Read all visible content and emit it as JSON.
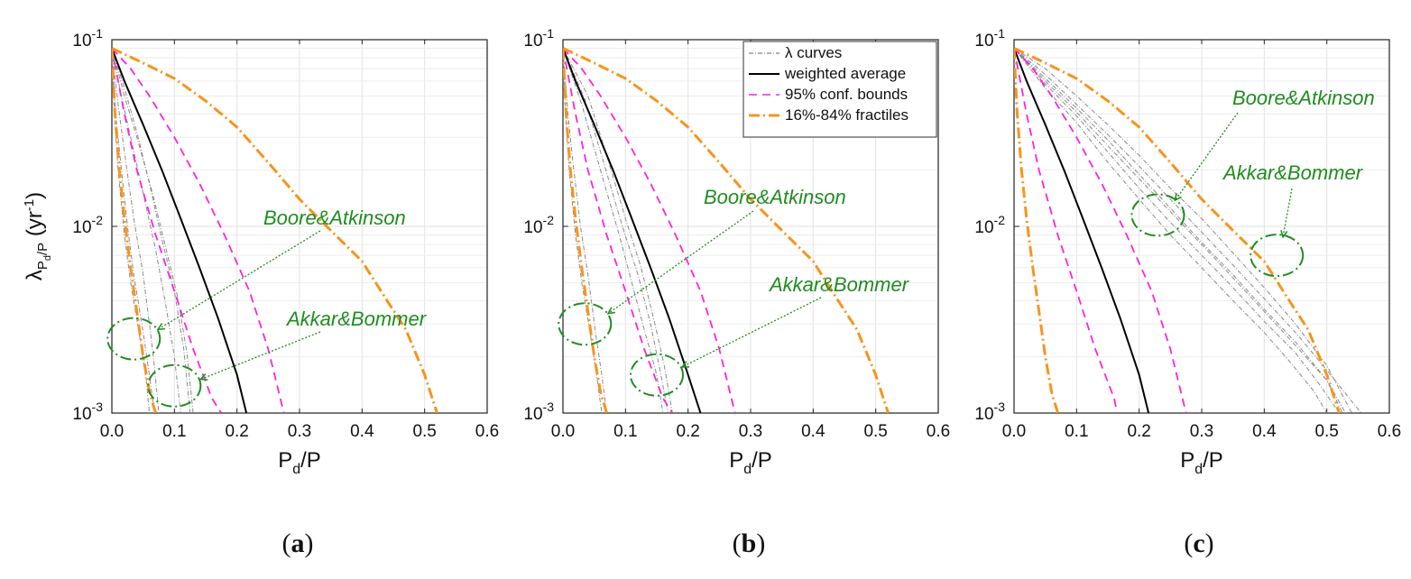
{
  "chart_data": [
    {
      "type": "line",
      "panel_label": "a",
      "xlabel": "P_d/P",
      "ylabel": "λ_{P_d/P} (yr^-1)",
      "xlim": [
        0,
        0.6
      ],
      "ylim": [
        0.001,
        0.1
      ],
      "yscale": "log",
      "xticks": [
        "0.0",
        "0.1",
        "0.2",
        "0.3",
        "0.4",
        "0.5",
        "0.6"
      ],
      "grid": true,
      "series": [
        {
          "name": "weighted average",
          "style": "solid",
          "color": "#000000",
          "x": [
            0,
            0.02,
            0.05,
            0.08,
            0.11,
            0.14,
            0.17,
            0.2,
            0.215
          ],
          "y": [
            0.09,
            0.06,
            0.035,
            0.02,
            0.011,
            0.006,
            0.0032,
            0.0016,
            0.001
          ]
        },
        {
          "name": "95% conf. bounds",
          "style": "dashed",
          "color": "#ff22dd",
          "x": [
            0,
            0.02,
            0.04,
            0.07,
            0.1,
            0.13,
            0.16,
            0.175
          ],
          "y": [
            0.09,
            0.04,
            0.02,
            0.009,
            0.0045,
            0.0022,
            0.0012,
            0.001
          ]
        },
        {
          "name": "95% conf. bounds",
          "style": "dashed",
          "color": "#ff22dd",
          "x": [
            0,
            0.03,
            0.06,
            0.1,
            0.14,
            0.18,
            0.22,
            0.25,
            0.275
          ],
          "y": [
            0.09,
            0.07,
            0.05,
            0.03,
            0.017,
            0.009,
            0.0045,
            0.0022,
            0.001
          ]
        },
        {
          "name": "16%-84% fractiles",
          "style": "dashdot",
          "color": "#f7941d",
          "x": [
            0,
            0.005,
            0.012,
            0.02,
            0.03,
            0.04,
            0.05,
            0.06,
            0.07
          ],
          "y": [
            0.09,
            0.04,
            0.02,
            0.011,
            0.006,
            0.0035,
            0.002,
            0.0013,
            0.001
          ]
        },
        {
          "name": "16%-84% fractiles",
          "style": "dashdot",
          "color": "#f7941d",
          "x": [
            0,
            0.05,
            0.1,
            0.15,
            0.2,
            0.25,
            0.3,
            0.35,
            0.4,
            0.44,
            0.47,
            0.5,
            0.52
          ],
          "y": [
            0.09,
            0.075,
            0.062,
            0.047,
            0.034,
            0.022,
            0.014,
            0.0095,
            0.0065,
            0.004,
            0.0028,
            0.0016,
            0.001
          ]
        }
      ],
      "lambda_curves": [
        {
          "x": [
            0,
            0.005,
            0.01,
            0.02,
            0.03,
            0.045,
            0.055,
            0.06
          ],
          "y": [
            0.09,
            0.035,
            0.02,
            0.009,
            0.005,
            0.0025,
            0.0015,
            0.001
          ]
        },
        {
          "x": [
            0,
            0.006,
            0.014,
            0.025,
            0.035,
            0.05,
            0.06,
            0.068
          ],
          "y": [
            0.09,
            0.04,
            0.022,
            0.01,
            0.0055,
            0.0027,
            0.0016,
            0.001
          ]
        },
        {
          "x": [
            0,
            0.01,
            0.02,
            0.035,
            0.05,
            0.06,
            0.068,
            0.075
          ],
          "y": [
            0.09,
            0.045,
            0.025,
            0.011,
            0.0055,
            0.003,
            0.0018,
            0.001
          ]
        },
        {
          "x": [
            0,
            0.015,
            0.03,
            0.05,
            0.07,
            0.085,
            0.1,
            0.11
          ],
          "y": [
            0.09,
            0.05,
            0.03,
            0.015,
            0.0075,
            0.004,
            0.002,
            0.001
          ]
        },
        {
          "x": [
            0,
            0.02,
            0.04,
            0.06,
            0.08,
            0.1,
            0.115,
            0.125
          ],
          "y": [
            0.09,
            0.055,
            0.032,
            0.017,
            0.0085,
            0.0045,
            0.0022,
            0.001
          ]
        },
        {
          "x": [
            0,
            0.02,
            0.04,
            0.065,
            0.085,
            0.105,
            0.12,
            0.13
          ],
          "y": [
            0.09,
            0.05,
            0.03,
            0.015,
            0.008,
            0.0042,
            0.0021,
            0.001
          ]
        }
      ],
      "annotations": [
        {
          "text": "Boore&Atkinson",
          "target": [
            0.035,
            0.0025
          ]
        },
        {
          "text": "Akkar&Bommer",
          "target": [
            0.1,
            0.0014
          ]
        }
      ],
      "legend": false
    },
    {
      "type": "line",
      "panel_label": "b",
      "xlabel": "P_d/P",
      "xlim": [
        0,
        0.6
      ],
      "ylim": [
        0.001,
        0.1
      ],
      "yscale": "log",
      "xticks": [
        "0.0",
        "0.1",
        "0.2",
        "0.3",
        "0.4",
        "0.5",
        "0.6"
      ],
      "grid": true,
      "series": [
        {
          "name": "weighted average",
          "style": "solid",
          "color": "#000000",
          "x": [
            0,
            0.02,
            0.05,
            0.08,
            0.11,
            0.14,
            0.17,
            0.2,
            0.22
          ],
          "y": [
            0.09,
            0.06,
            0.035,
            0.02,
            0.011,
            0.006,
            0.0032,
            0.0016,
            0.001
          ]
        },
        {
          "name": "95% conf. bounds",
          "style": "dashed",
          "color": "#ff22dd",
          "x": [
            0,
            0.02,
            0.04,
            0.07,
            0.1,
            0.13,
            0.16,
            0.175
          ],
          "y": [
            0.09,
            0.04,
            0.02,
            0.009,
            0.0045,
            0.0022,
            0.0012,
            0.001
          ]
        },
        {
          "name": "95% conf. bounds",
          "style": "dashed",
          "color": "#ff22dd",
          "x": [
            0,
            0.03,
            0.06,
            0.1,
            0.14,
            0.18,
            0.22,
            0.25,
            0.275
          ],
          "y": [
            0.09,
            0.07,
            0.05,
            0.03,
            0.017,
            0.009,
            0.0045,
            0.0022,
            0.001
          ]
        },
        {
          "name": "16%-84% fractiles",
          "style": "dashdot",
          "color": "#f7941d",
          "x": [
            0,
            0.005,
            0.012,
            0.02,
            0.03,
            0.04,
            0.05,
            0.06,
            0.07
          ],
          "y": [
            0.09,
            0.04,
            0.02,
            0.011,
            0.006,
            0.0035,
            0.002,
            0.0013,
            0.001
          ]
        },
        {
          "name": "16%-84% fractiles",
          "style": "dashdot",
          "color": "#f7941d",
          "x": [
            0,
            0.05,
            0.1,
            0.15,
            0.2,
            0.25,
            0.3,
            0.35,
            0.4,
            0.44,
            0.47,
            0.5,
            0.52
          ],
          "y": [
            0.09,
            0.075,
            0.062,
            0.047,
            0.034,
            0.022,
            0.014,
            0.0095,
            0.0065,
            0.004,
            0.0028,
            0.0016,
            0.001
          ]
        }
      ],
      "lambda_curves": [
        {
          "x": [
            0,
            0.005,
            0.01,
            0.02,
            0.03,
            0.045,
            0.055,
            0.062
          ],
          "y": [
            0.09,
            0.035,
            0.02,
            0.009,
            0.005,
            0.0025,
            0.0015,
            0.001
          ]
        },
        {
          "x": [
            0,
            0.008,
            0.016,
            0.028,
            0.04,
            0.052,
            0.062,
            0.07
          ],
          "y": [
            0.09,
            0.04,
            0.022,
            0.01,
            0.0055,
            0.0027,
            0.0016,
            0.001
          ]
        },
        {
          "x": [
            0,
            0.03,
            0.06,
            0.09,
            0.11,
            0.13,
            0.15,
            0.16
          ],
          "y": [
            0.09,
            0.045,
            0.02,
            0.009,
            0.005,
            0.0028,
            0.0016,
            0.001
          ]
        },
        {
          "x": [
            0,
            0.035,
            0.065,
            0.095,
            0.12,
            0.14,
            0.155,
            0.168
          ],
          "y": [
            0.09,
            0.048,
            0.022,
            0.01,
            0.0055,
            0.003,
            0.0017,
            0.001
          ]
        },
        {
          "x": [
            0,
            0.04,
            0.07,
            0.1,
            0.125,
            0.145,
            0.162,
            0.175
          ],
          "y": [
            0.09,
            0.05,
            0.024,
            0.011,
            0.006,
            0.0032,
            0.0018,
            0.001
          ]
        }
      ],
      "annotations": [
        {
          "text": "Boore&Atkinson",
          "target": [
            0.035,
            0.003
          ]
        },
        {
          "text": "Akkar&Bommer",
          "target": [
            0.15,
            0.0016
          ]
        }
      ],
      "legend": true,
      "legend_position": "top-right",
      "legend_entries": [
        {
          "label": "λ curves",
          "style": "dashdot",
          "color": "#9a9a9a"
        },
        {
          "label": "weighted average",
          "style": "solid",
          "color": "#000000"
        },
        {
          "label": "95% conf. bounds",
          "style": "dashed",
          "color": "#ff22dd"
        },
        {
          "label": "16%-84% fractiles",
          "style": "dashdot",
          "color": "#f7941d"
        }
      ]
    },
    {
      "type": "line",
      "panel_label": "c",
      "xlabel": "P_d/P",
      "xlim": [
        0,
        0.6
      ],
      "ylim": [
        0.001,
        0.1
      ],
      "yscale": "log",
      "xticks": [
        "0.0",
        "0.1",
        "0.2",
        "0.3",
        "0.4",
        "0.5",
        "0.6"
      ],
      "grid": true,
      "series": [
        {
          "name": "weighted average",
          "style": "solid",
          "color": "#000000",
          "x": [
            0,
            0.02,
            0.05,
            0.08,
            0.11,
            0.14,
            0.17,
            0.2,
            0.215
          ],
          "y": [
            0.09,
            0.06,
            0.035,
            0.02,
            0.011,
            0.006,
            0.0032,
            0.0016,
            0.001
          ]
        },
        {
          "name": "95% conf. bounds",
          "style": "dashed",
          "color": "#ff22dd",
          "x": [
            0,
            0.02,
            0.04,
            0.07,
            0.1,
            0.13,
            0.16,
            0.165
          ],
          "y": [
            0.09,
            0.04,
            0.02,
            0.009,
            0.0045,
            0.0022,
            0.0012,
            0.001
          ]
        },
        {
          "name": "95% conf. bounds",
          "style": "dashed",
          "color": "#ff22dd",
          "x": [
            0,
            0.03,
            0.06,
            0.1,
            0.14,
            0.18,
            0.22,
            0.25,
            0.275
          ],
          "y": [
            0.09,
            0.07,
            0.05,
            0.03,
            0.017,
            0.009,
            0.0045,
            0.0022,
            0.001
          ]
        },
        {
          "name": "16%-84% fractiles",
          "style": "dashdot",
          "color": "#f7941d",
          "x": [
            0,
            0.005,
            0.012,
            0.02,
            0.03,
            0.04,
            0.05,
            0.06,
            0.07
          ],
          "y": [
            0.09,
            0.04,
            0.02,
            0.011,
            0.006,
            0.0035,
            0.002,
            0.0013,
            0.001
          ]
        },
        {
          "name": "16%-84% fractiles",
          "style": "dashdot",
          "color": "#f7941d",
          "x": [
            0,
            0.05,
            0.1,
            0.15,
            0.2,
            0.25,
            0.3,
            0.35,
            0.4,
            0.44,
            0.47,
            0.5,
            0.52
          ],
          "y": [
            0.09,
            0.075,
            0.062,
            0.047,
            0.034,
            0.022,
            0.014,
            0.0095,
            0.0065,
            0.004,
            0.0028,
            0.0016,
            0.001
          ]
        }
      ],
      "lambda_curves": [
        {
          "x": [
            0,
            0.05,
            0.1,
            0.15,
            0.2,
            0.25,
            0.3,
            0.35,
            0.4,
            0.44,
            0.48,
            0.5
          ],
          "y": [
            0.09,
            0.055,
            0.036,
            0.022,
            0.014,
            0.009,
            0.006,
            0.004,
            0.0027,
            0.0019,
            0.0013,
            0.001
          ]
        },
        {
          "x": [
            0,
            0.05,
            0.1,
            0.15,
            0.2,
            0.25,
            0.3,
            0.35,
            0.4,
            0.45,
            0.49,
            0.52
          ],
          "y": [
            0.09,
            0.058,
            0.039,
            0.025,
            0.016,
            0.0105,
            0.007,
            0.0047,
            0.0031,
            0.0021,
            0.0014,
            0.001
          ]
        },
        {
          "x": [
            0,
            0.05,
            0.1,
            0.15,
            0.2,
            0.25,
            0.3,
            0.35,
            0.4,
            0.45,
            0.5,
            0.53
          ],
          "y": [
            0.09,
            0.06,
            0.041,
            0.027,
            0.018,
            0.012,
            0.008,
            0.0053,
            0.0035,
            0.0023,
            0.0015,
            0.001
          ]
        },
        {
          "x": [
            0,
            0.05,
            0.1,
            0.15,
            0.2,
            0.25,
            0.3,
            0.35,
            0.4,
            0.45,
            0.5,
            0.555
          ],
          "y": [
            0.09,
            0.065,
            0.045,
            0.031,
            0.021,
            0.014,
            0.0093,
            0.0062,
            0.0041,
            0.0027,
            0.0017,
            0.001
          ]
        },
        {
          "x": [
            0,
            0.05,
            0.1,
            0.15,
            0.2,
            0.25,
            0.3,
            0.35,
            0.4,
            0.45,
            0.5,
            0.54
          ],
          "y": [
            0.09,
            0.07,
            0.05,
            0.035,
            0.024,
            0.016,
            0.011,
            0.0072,
            0.0047,
            0.003,
            0.0018,
            0.001
          ]
        },
        {
          "x": [
            0,
            0.05,
            0.1,
            0.15,
            0.2,
            0.25,
            0.3,
            0.35,
            0.4,
            0.45,
            0.5,
            0.525
          ],
          "y": [
            0.09,
            0.062,
            0.043,
            0.029,
            0.019,
            0.0125,
            0.0082,
            0.0055,
            0.0036,
            0.0024,
            0.0015,
            0.001
          ]
        }
      ],
      "annotations": [
        {
          "text": "Boore&Atkinson",
          "target": [
            0.23,
            0.0115
          ]
        },
        {
          "text": "Akkar&Bommer",
          "target": [
            0.42,
            0.007
          ]
        }
      ],
      "legend": false
    }
  ]
}
